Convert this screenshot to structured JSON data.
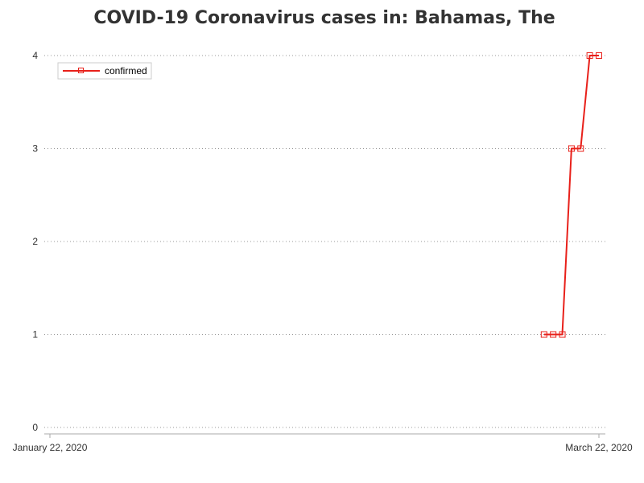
{
  "chart_data": {
    "type": "line",
    "title": "COVID-19 Coronavirus cases in: Bahamas, The",
    "xlabel": "",
    "ylabel": "",
    "x_tick_labels": [
      "January 22, 2020",
      "March 22, 2020"
    ],
    "y_ticks": [
      0,
      1,
      2,
      3,
      4
    ],
    "ylim": [
      0,
      4
    ],
    "xlim": [
      "2020-01-22",
      "2020-03-22"
    ],
    "grid": "horizontal dotted",
    "legend_position": "top-left",
    "series": [
      {
        "name": "confirmed",
        "color": "#e8201a",
        "marker": "hollow-square",
        "x": [
          "2020-03-16",
          "2020-03-17",
          "2020-03-18",
          "2020-03-19",
          "2020-03-20",
          "2020-03-21",
          "2020-03-22"
        ],
        "values": [
          1,
          1,
          1,
          3,
          3,
          4,
          4
        ]
      }
    ]
  }
}
